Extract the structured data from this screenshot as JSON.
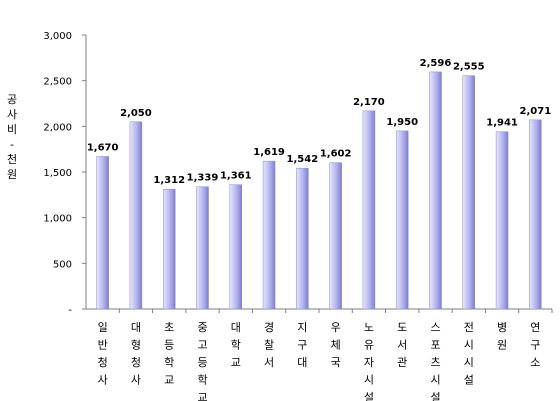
{
  "chart_data": {
    "type": "bar",
    "ylabel": "공사비 - 천원",
    "ylim": [
      0,
      3000
    ],
    "yticks": [
      0,
      500,
      1000,
      1500,
      2000,
      2500,
      3000
    ],
    "ytick_labels": [
      "-",
      "500",
      "1,000",
      "1,500",
      "2,000",
      "2,500",
      "3,000"
    ],
    "grid": false,
    "categories": [
      "일반청사",
      "대형청사",
      "초등학교",
      "중고등학교",
      "대학교",
      "경찰서",
      "지구대",
      "우체국",
      "노유자시설",
      "도서관",
      "스포츠시설",
      "전시시설",
      "병원",
      "연구소"
    ],
    "values": [
      1670,
      2050,
      1312,
      1339,
      1361,
      1619,
      1542,
      1602,
      2170,
      1950,
      2596,
      2555,
      1941,
      2071
    ],
    "value_labels": [
      "1,670",
      "2,050",
      "1,312",
      "1,339",
      "1,361",
      "1,619",
      "1,542",
      "1,602",
      "2,170",
      "1,950",
      "2,596",
      "2,555",
      "1,941",
      "2,071"
    ],
    "colors": {
      "bar_light": "#e6e6fb",
      "bar_mid": "#b4b4ee",
      "bar_dark": "#7e7ecf"
    }
  }
}
